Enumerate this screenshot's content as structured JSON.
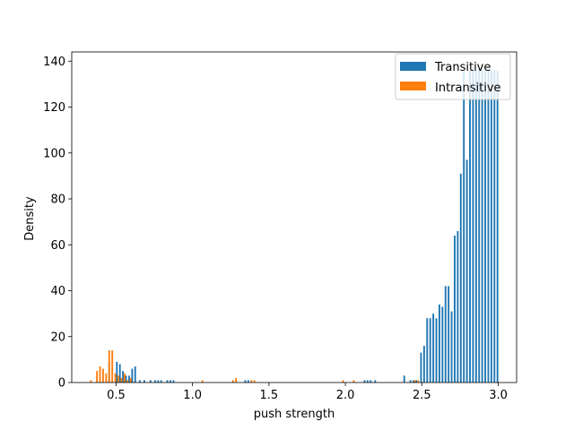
{
  "chart_data": {
    "type": "bar",
    "title": "",
    "xlabel": "push strength",
    "ylabel": "Density",
    "xlim": [
      0.21,
      3.12
    ],
    "ylim": [
      0,
      144
    ],
    "grid": false,
    "legend_position": "top-right",
    "x_ticks": [
      0.5,
      1.0,
      1.5,
      2.0,
      2.5,
      3.0
    ],
    "x_tick_labels": [
      "0.5",
      "1.0",
      "1.5",
      "2.0",
      "2.5",
      "3.0"
    ],
    "y_ticks": [
      0,
      20,
      40,
      60,
      80,
      100,
      120,
      140
    ],
    "y_tick_labels": [
      "0",
      "20",
      "40",
      "60",
      "80",
      "100",
      "120",
      "140"
    ],
    "colors": {
      "Transitive": "#1f77b4",
      "Intransitive": "#ff7f0e"
    },
    "series": [
      {
        "name": "Transitive",
        "color": "#1f77b4",
        "x": [
          0.455,
          0.505,
          0.525,
          0.545,
          0.565,
          0.585,
          0.605,
          0.625,
          0.655,
          0.685,
          0.725,
          0.755,
          0.775,
          0.795,
          0.835,
          0.855,
          0.875,
          1.345,
          1.365,
          2.125,
          2.145,
          2.165,
          2.195,
          2.385,
          2.425,
          2.445,
          2.465,
          2.495,
          2.515,
          2.535,
          2.555,
          2.575,
          2.595,
          2.615,
          2.635,
          2.655,
          2.675,
          2.695,
          2.715,
          2.735,
          2.755,
          2.775,
          2.795,
          2.815,
          2.835,
          2.855,
          2.875,
          2.895,
          2.915,
          2.935,
          2.955,
          2.975,
          2.995
        ],
        "values": [
          9,
          9,
          8,
          5,
          3,
          3,
          6,
          7,
          1,
          1,
          1,
          1,
          1,
          1,
          1,
          1,
          1,
          1,
          1,
          1,
          1,
          1,
          1,
          3,
          1,
          1,
          1,
          13,
          16,
          28,
          28,
          30,
          28,
          34,
          33,
          42,
          42,
          31,
          64,
          66,
          91,
          136,
          97,
          136,
          136,
          136,
          136,
          136,
          136,
          136,
          136,
          136,
          136
        ]
      },
      {
        "name": "Intransitive",
        "color": "#ff7f0e",
        "x": [
          0.335,
          0.375,
          0.395,
          0.415,
          0.435,
          0.455,
          0.475,
          0.495,
          0.515,
          0.535,
          0.555,
          0.575,
          0.595,
          1.065,
          1.265,
          1.285,
          1.385,
          1.405,
          1.985,
          2.055,
          2.455,
          2.475
        ],
        "values": [
          1,
          5,
          7,
          6,
          4,
          14,
          14,
          4,
          3,
          2,
          4,
          1,
          2,
          1,
          1,
          2,
          1,
          1,
          1,
          1,
          1,
          1
        ]
      }
    ]
  }
}
